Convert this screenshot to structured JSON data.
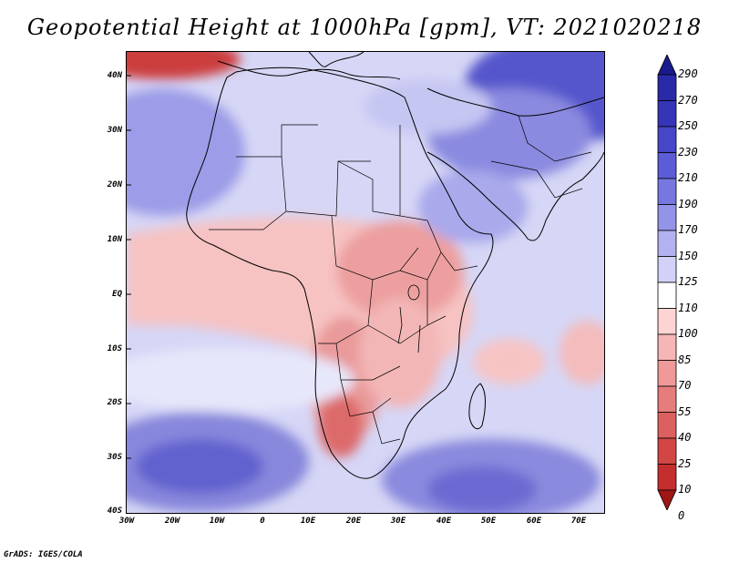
{
  "title": "Geopotential Height at 1000hPa [gpm], VT: 2021020218",
  "footer": "GrADS: IGES/COLA",
  "map": {
    "region": "Africa and surrounding oceans",
    "lat_labels": [
      "40N",
      "30N",
      "20N",
      "10N",
      "EQ",
      "10S",
      "20S",
      "30S",
      "40S"
    ],
    "lon_labels": [
      "30W",
      "20W",
      "10W",
      "0",
      "10E",
      "20E",
      "30E",
      "40E",
      "50E",
      "60E",
      "70E"
    ]
  },
  "colorbar": {
    "levels": [
      "290",
      "270",
      "250",
      "230",
      "210",
      "190",
      "170",
      "150",
      "125",
      "110",
      "100",
      "85",
      "70",
      "55",
      "40",
      "25",
      "10",
      "0"
    ],
    "colors": [
      "#1e1e96",
      "#2a2aa8",
      "#3535b8",
      "#4646c8",
      "#5c5cd6",
      "#7777e0",
      "#9393e8",
      "#b2b2f0",
      "#d2d2f8",
      "#ffffff",
      "#fdd3d3",
      "#f7b6b6",
      "#ef9999",
      "#e67d7d",
      "#dd6060",
      "#d34646",
      "#c52e2e",
      "#b01c1c"
    ],
    "top_arrow_color": "#1a1a8c",
    "bottom_arrow_color": "#a01515"
  }
}
